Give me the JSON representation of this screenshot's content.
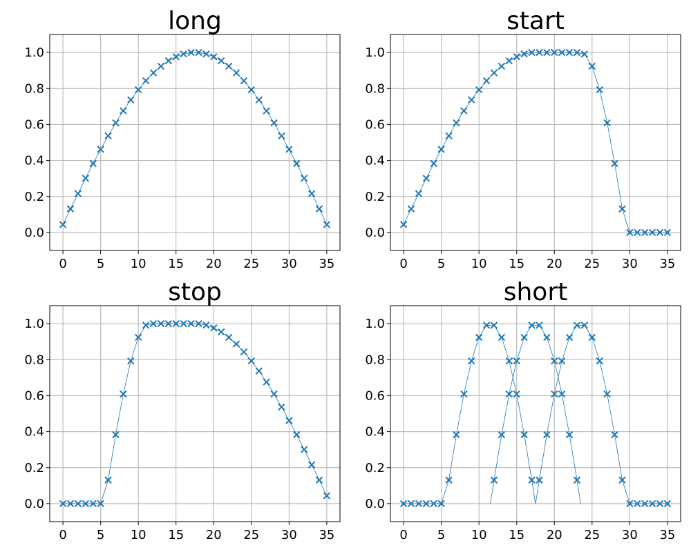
{
  "colors": {
    "series": "#1f77b4",
    "grid": "#b0b0b0"
  },
  "chart_data": [
    {
      "type": "line",
      "title": "long",
      "xlabel": "",
      "ylabel": "",
      "xlim": [
        -1.75,
        36.75
      ],
      "ylim": [
        -0.1,
        1.1
      ],
      "xticks": [
        0,
        5,
        10,
        15,
        20,
        25,
        30,
        35
      ],
      "yticks": [
        0.0,
        0.2,
        0.4,
        0.6,
        0.8,
        1.0
      ],
      "grid": true,
      "marker": "x",
      "series": [
        {
          "x": [
            0,
            1,
            2,
            3,
            4,
            5,
            6,
            7,
            8,
            9,
            10,
            11,
            12,
            13,
            14,
            15,
            16,
            17,
            18,
            19,
            20,
            21,
            22,
            23,
            24,
            25,
            26,
            27,
            28,
            29,
            30,
            31,
            32,
            33,
            34,
            35
          ],
          "y": [
            0.044,
            0.131,
            0.216,
            0.301,
            0.383,
            0.462,
            0.537,
            0.609,
            0.676,
            0.737,
            0.793,
            0.843,
            0.887,
            0.924,
            0.954,
            0.976,
            0.992,
            1.0,
            1.0,
            0.992,
            0.976,
            0.954,
            0.924,
            0.887,
            0.843,
            0.793,
            0.737,
            0.676,
            0.609,
            0.537,
            0.462,
            0.383,
            0.301,
            0.216,
            0.131,
            0.044
          ]
        }
      ]
    },
    {
      "type": "line",
      "title": "start",
      "xlabel": "",
      "ylabel": "",
      "xlim": [
        -1.75,
        36.75
      ],
      "ylim": [
        -0.1,
        1.1
      ],
      "xticks": [
        0,
        5,
        10,
        15,
        20,
        25,
        30,
        35
      ],
      "yticks": [
        0.0,
        0.2,
        0.4,
        0.6,
        0.8,
        1.0
      ],
      "grid": true,
      "marker": "x",
      "series": [
        {
          "x": [
            0,
            1,
            2,
            3,
            4,
            5,
            6,
            7,
            8,
            9,
            10,
            11,
            12,
            13,
            14,
            15,
            16,
            17,
            18,
            19,
            20,
            21,
            22,
            23,
            24,
            25,
            26,
            27,
            28,
            29,
            30,
            31,
            32,
            33,
            34,
            35
          ],
          "y": [
            0.044,
            0.131,
            0.216,
            0.301,
            0.383,
            0.462,
            0.537,
            0.609,
            0.676,
            0.737,
            0.793,
            0.843,
            0.887,
            0.924,
            0.954,
            0.976,
            0.992,
            1.0,
            1.0,
            1.0,
            1.0,
            1.0,
            1.0,
            1.0,
            0.991,
            0.924,
            0.793,
            0.609,
            0.383,
            0.131,
            0,
            0,
            0,
            0,
            0,
            0
          ]
        }
      ]
    },
    {
      "type": "line",
      "title": "stop",
      "xlabel": "",
      "ylabel": "",
      "xlim": [
        -1.75,
        36.75
      ],
      "ylim": [
        -0.1,
        1.1
      ],
      "xticks": [
        0,
        5,
        10,
        15,
        20,
        25,
        30,
        35
      ],
      "yticks": [
        0.0,
        0.2,
        0.4,
        0.6,
        0.8,
        1.0
      ],
      "grid": true,
      "marker": "x",
      "series": [
        {
          "x": [
            0,
            1,
            2,
            3,
            4,
            5,
            6,
            7,
            8,
            9,
            10,
            11,
            12,
            13,
            14,
            15,
            16,
            17,
            18,
            19,
            20,
            21,
            22,
            23,
            24,
            25,
            26,
            27,
            28,
            29,
            30,
            31,
            32,
            33,
            34,
            35
          ],
          "y": [
            0,
            0,
            0,
            0,
            0,
            0,
            0.131,
            0.383,
            0.609,
            0.793,
            0.924,
            0.991,
            1.0,
            1.0,
            1.0,
            1.0,
            1.0,
            1.0,
            1.0,
            0.992,
            0.976,
            0.954,
            0.924,
            0.887,
            0.843,
            0.793,
            0.737,
            0.676,
            0.609,
            0.537,
            0.462,
            0.383,
            0.301,
            0.216,
            0.131,
            0.044
          ]
        }
      ]
    },
    {
      "type": "line",
      "title": "short",
      "xlabel": "",
      "ylabel": "",
      "xlim": [
        -1.75,
        36.75
      ],
      "ylim": [
        -0.1,
        1.1
      ],
      "xticks": [
        0,
        5,
        10,
        15,
        20,
        25,
        30,
        35
      ],
      "yticks": [
        0.0,
        0.2,
        0.4,
        0.6,
        0.8,
        1.0
      ],
      "grid": true,
      "marker": "x",
      "series": [
        {
          "x": [
            0,
            1,
            2,
            3,
            4,
            5,
            6,
            7,
            8,
            9,
            10,
            11,
            12,
            13,
            14,
            15,
            16,
            17,
            17.5
          ],
          "y": [
            0,
            0,
            0,
            0,
            0,
            0,
            0.131,
            0.383,
            0.609,
            0.793,
            0.924,
            0.991,
            0.991,
            0.924,
            0.793,
            0.609,
            0.383,
            0.131,
            0
          ]
        },
        {
          "x": [
            11.5,
            12,
            13,
            14,
            15,
            16,
            17,
            18,
            19,
            20,
            21,
            22,
            23,
            23.5
          ],
          "y": [
            0,
            0.131,
            0.383,
            0.609,
            0.793,
            0.924,
            0.991,
            0.991,
            0.924,
            0.793,
            0.609,
            0.383,
            0.131,
            0
          ]
        },
        {
          "x": [
            17.5,
            18,
            19,
            20,
            21,
            22,
            23,
            24,
            25,
            26,
            27,
            28,
            29,
            30,
            31,
            32,
            33,
            34,
            35
          ],
          "y": [
            0,
            0.131,
            0.383,
            0.609,
            0.793,
            0.924,
            0.991,
            0.991,
            0.924,
            0.793,
            0.609,
            0.383,
            0.131,
            0,
            0,
            0,
            0,
            0,
            0
          ]
        }
      ]
    }
  ]
}
